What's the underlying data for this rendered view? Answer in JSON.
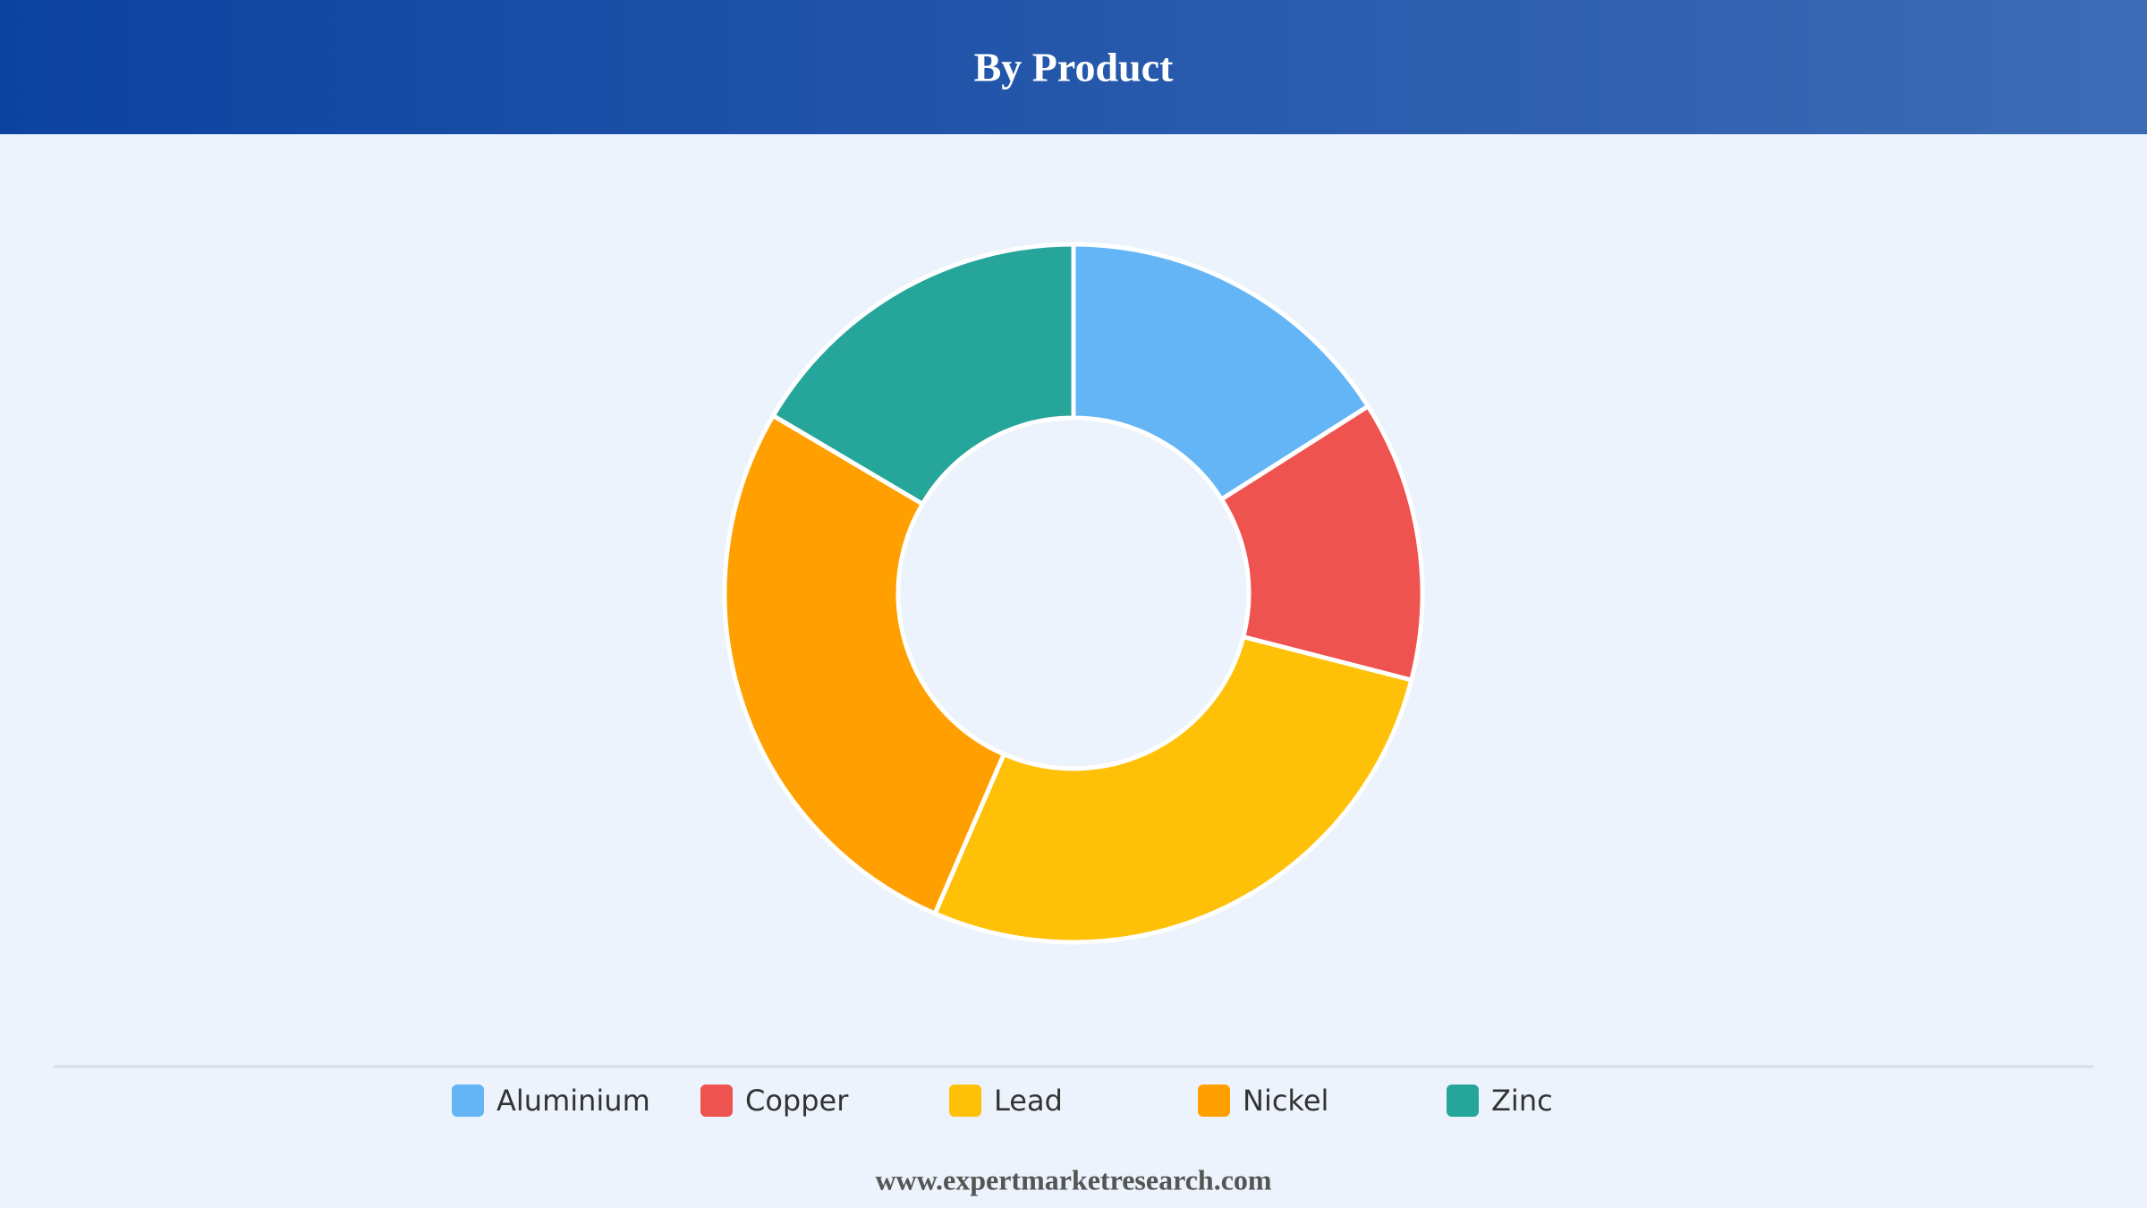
{
  "chart_data": {
    "type": "donut",
    "title": "By Product",
    "categories": [
      "Aluminium",
      "Copper",
      "Lead",
      "Nickel",
      "Zinc"
    ],
    "values": [
      16,
      13,
      27.5,
      27,
      16.5
    ],
    "colors": [
      "#64b5f6",
      "#ef5350",
      "#ffc107",
      "#ffa000",
      "#26a69a"
    ],
    "legend": "bottom",
    "source": "www.expertmarketresearch.com"
  }
}
